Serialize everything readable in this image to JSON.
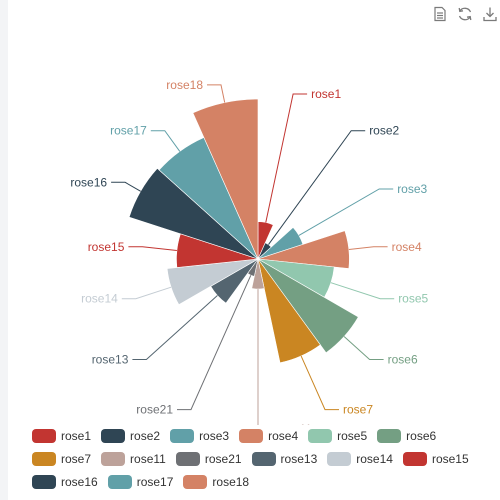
{
  "toolbox": {
    "icons": [
      "data-view-icon",
      "restore-icon",
      "save-image-icon"
    ]
  },
  "chart_data": {
    "type": "pie",
    "subtype": "nightingale-rose",
    "title": "",
    "slices": [
      {
        "name": "rose1",
        "value": 12,
        "color": "#c23531"
      },
      {
        "name": "rose2",
        "value": 4,
        "color": "#2f4554"
      },
      {
        "name": "rose3",
        "value": 16,
        "color": "#61a0a8"
      },
      {
        "name": "rose4",
        "value": 34,
        "color": "#d48265"
      },
      {
        "name": "rose5",
        "value": 28,
        "color": "#91c7ae"
      },
      {
        "name": "rose6",
        "value": 44,
        "color": "#749f83"
      },
      {
        "name": "rose7",
        "value": 40,
        "color": "#ca8622"
      },
      {
        "name": "rose11",
        "value": 9,
        "color": "#bda29a"
      },
      {
        "name": "rose21",
        "value": 4,
        "color": "#6e7074"
      },
      {
        "name": "rose13",
        "value": 19,
        "color": "#546570"
      },
      {
        "name": "rose14",
        "value": 34,
        "color": "#c4ccd3"
      },
      {
        "name": "rose15",
        "value": 30,
        "color": "#c23531"
      },
      {
        "name": "rose16",
        "value": 52,
        "color": "#2f4554"
      },
      {
        "name": "rose17",
        "value": 51,
        "color": "#61a0a8"
      },
      {
        "name": "rose18",
        "value": 62,
        "color": "#d48265"
      }
    ],
    "legend_position": "bottom"
  }
}
